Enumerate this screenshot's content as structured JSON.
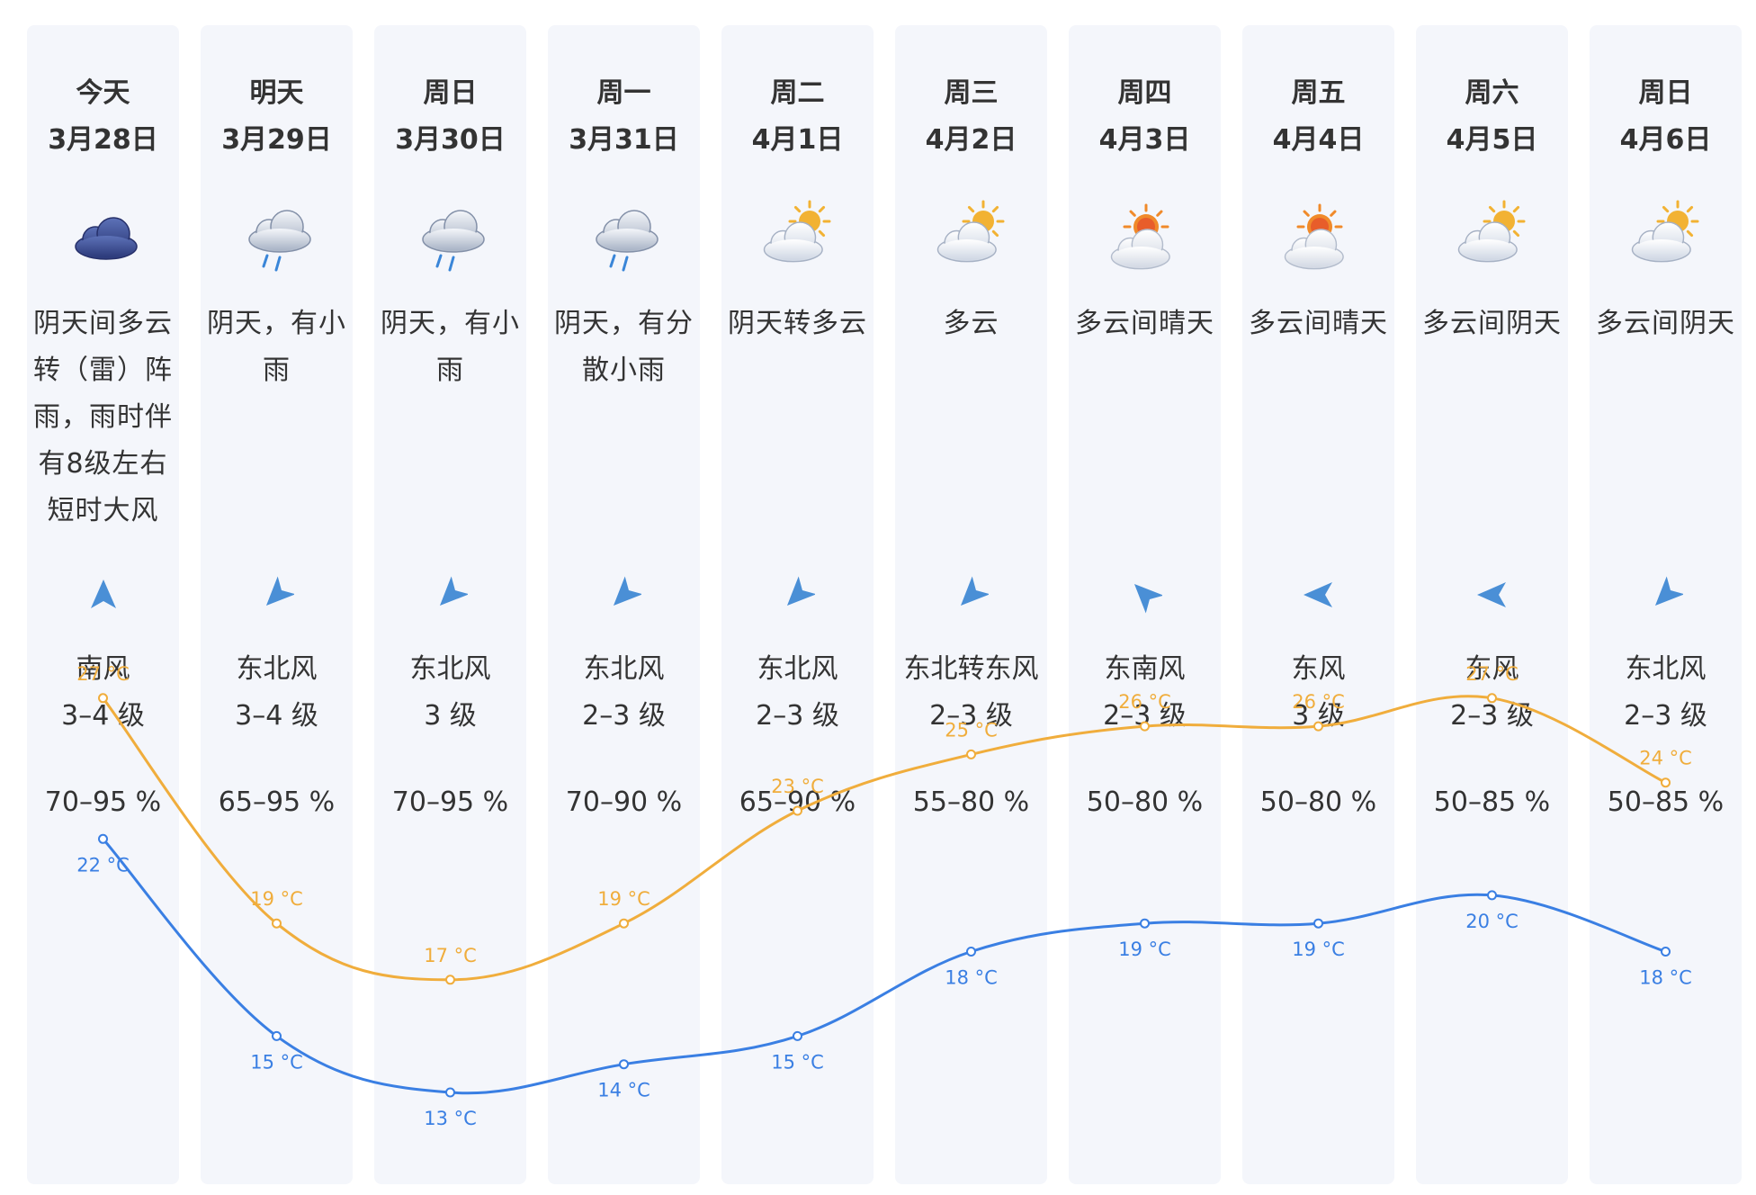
{
  "colors": {
    "high": "#f0ad3c",
    "low": "#3a7fe3",
    "panel": "#f4f6fb",
    "wind_arrow": "#4a8fd6"
  },
  "days": [
    {
      "day": "今天",
      "date": "3月28日",
      "icon": "overcast-cloud-icon",
      "desc": "阴天间多云转（雷）阵雨，雨时伴有8级左右短时大风",
      "wind_icon": "wind-arrow-south-icon",
      "wind_dir": "南风",
      "wind_level": "3–4 级",
      "humidity": "70–95 %",
      "high_label": "27 °C",
      "low_label": "22 °C"
    },
    {
      "day": "明天",
      "date": "3月29日",
      "icon": "light-rain-icon",
      "desc": "阴天，有小雨",
      "wind_icon": "wind-arrow-northeast-icon",
      "wind_dir": "东北风",
      "wind_level": "3–4 级",
      "humidity": "65–95 %",
      "high_label": "19 °C",
      "low_label": "15 °C"
    },
    {
      "day": "周日",
      "date": "3月30日",
      "icon": "light-rain-icon",
      "desc": "阴天，有小雨",
      "wind_icon": "wind-arrow-northeast-icon",
      "wind_dir": "东北风",
      "wind_level": "3 级",
      "humidity": "70–95 %",
      "high_label": "17 °C",
      "low_label": "13 °C"
    },
    {
      "day": "周一",
      "date": "3月31日",
      "icon": "light-rain-icon",
      "desc": "阴天，有分散小雨",
      "wind_icon": "wind-arrow-northeast-icon",
      "wind_dir": "东北风",
      "wind_level": "2–3 级",
      "humidity": "70–90 %",
      "high_label": "19 °C",
      "low_label": "14 °C"
    },
    {
      "day": "周二",
      "date": "4月1日",
      "icon": "partly-cloudy-icon",
      "desc": "阴天转多云",
      "wind_icon": "wind-arrow-northeast-icon",
      "wind_dir": "东北风",
      "wind_level": "2–3 级",
      "humidity": "65–90 %",
      "high_label": "23 °C",
      "low_label": "15 °C"
    },
    {
      "day": "周三",
      "date": "4月2日",
      "icon": "partly-cloudy-icon",
      "desc": "多云",
      "wind_icon": "wind-arrow-northeast-icon",
      "wind_dir": "东北转东风",
      "wind_level": "2–3 级",
      "humidity": "55–80 %",
      "high_label": "25 °C",
      "low_label": "18 °C"
    },
    {
      "day": "周四",
      "date": "4月3日",
      "icon": "sun-cloud-icon",
      "desc": "多云间晴天",
      "wind_icon": "wind-arrow-southeast-icon",
      "wind_dir": "东南风",
      "wind_level": "2–3 级",
      "humidity": "50–80 %",
      "high_label": "26 °C",
      "low_label": "19 °C"
    },
    {
      "day": "周五",
      "date": "4月4日",
      "icon": "sun-cloud-icon",
      "desc": "多云间晴天",
      "wind_icon": "wind-arrow-east-icon",
      "wind_dir": "东风",
      "wind_level": "3 级",
      "humidity": "50–80 %",
      "high_label": "26 °C",
      "low_label": "19 °C"
    },
    {
      "day": "周六",
      "date": "4月5日",
      "icon": "partly-cloudy-icon",
      "desc": "多云间阴天",
      "wind_icon": "wind-arrow-east-icon",
      "wind_dir": "东风",
      "wind_level": "2–3 级",
      "humidity": "50–85 %",
      "high_label": "27 °C",
      "low_label": "20 °C"
    },
    {
      "day": "周日",
      "date": "4月6日",
      "icon": "partly-cloudy-icon",
      "desc": "多云间阴天",
      "wind_icon": "wind-arrow-northeast-icon",
      "wind_dir": "东北风",
      "wind_level": "2–3 级",
      "humidity": "50–85 %",
      "high_label": "24 °C",
      "low_label": "18 °C"
    }
  ],
  "chart_data": {
    "type": "line",
    "x": [
      "3月28日",
      "3月29日",
      "3月30日",
      "3月31日",
      "4月1日",
      "4月2日",
      "4月3日",
      "4月4日",
      "4月5日",
      "4月6日"
    ],
    "series": [
      {
        "values": [
          27,
          19,
          17,
          19,
          23,
          25,
          26,
          26,
          27,
          24
        ]
      },
      {
        "values": [
          22,
          15,
          13,
          14,
          15,
          18,
          19,
          19,
          20,
          18
        ]
      }
    ],
    "unit": "°C"
  }
}
